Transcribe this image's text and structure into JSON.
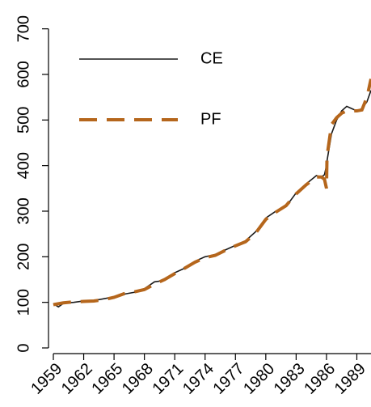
{
  "chart_data": {
    "type": "line",
    "x": [
      1959,
      1959.5,
      1960,
      1961,
      1962,
      1963,
      1964,
      1965,
      1966,
      1967,
      1968,
      1969,
      1970,
      1971,
      1972,
      1973,
      1974,
      1975,
      1976,
      1977,
      1978,
      1979,
      1980,
      1981,
      1982,
      1983,
      1984,
      1985,
      1985.5,
      1985.8,
      1986,
      1986.05,
      1986.5,
      1987,
      1987.5,
      1988,
      1988.5,
      1989,
      1989.5,
      1990,
      1990.4
    ],
    "series": [
      {
        "name": "CE",
        "color": "#1a1a1a",
        "dash": "solid",
        "values": [
          97,
          90,
          98,
          100,
          103,
          104,
          108,
          112,
          118,
          122,
          130,
          145,
          148,
          165,
          175,
          190,
          200,
          205,
          215,
          225,
          235,
          255,
          285,
          300,
          310,
          340,
          360,
          378,
          375,
          380,
          400,
          410,
          470,
          500,
          520,
          530,
          525,
          520,
          525,
          540,
          565
        ]
      },
      {
        "name": "PF",
        "color": "#b5661c",
        "dash": "dashed",
        "values": [
          95,
          97,
          99,
          101,
          102,
          103,
          106,
          111,
          119,
          123,
          128,
          140,
          150,
          163,
          175,
          188,
          198,
          203,
          214,
          224,
          233,
          252,
          282,
          298,
          312,
          338,
          358,
          375,
          375,
          370,
          350,
          420,
          490,
          505,
          515,
          520,
          520,
          520,
          522,
          550,
          590
        ]
      }
    ],
    "xlim": [
      1959,
      1990.4
    ],
    "xticks": [
      1959,
      1962,
      1965,
      1968,
      1971,
      1974,
      1977,
      1980,
      1983,
      1986,
      1989
    ],
    "ylim": [
      0,
      710
    ],
    "yticks": [
      0,
      100,
      200,
      300,
      400,
      500,
      600,
      700
    ],
    "legend": "top-left"
  }
}
